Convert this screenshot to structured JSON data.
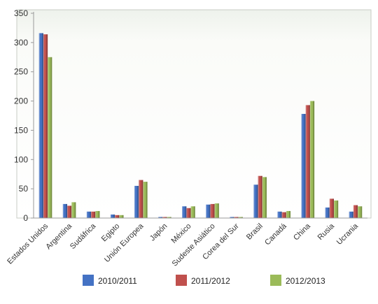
{
  "chart_data": {
    "type": "bar",
    "title": "",
    "xlabel": "",
    "ylabel": "",
    "ylim": [
      0,
      350
    ],
    "yticks": [
      0,
      50,
      100,
      150,
      200,
      250,
      300,
      350
    ],
    "grid": false,
    "legend_position": "bottom",
    "categories": [
      "Estados Unidos",
      "Argentina",
      "Sudáfrica",
      "Egipto",
      "Unión Europea",
      "Japón",
      "México",
      "Sudeste Asiático",
      "Corea del Sur",
      "Brasil",
      "Canadá",
      "China",
      "Rusia",
      "Ucrania"
    ],
    "series": [
      {
        "name": "2010/2011",
        "color": "#4472c4",
        "values": [
          316,
          24,
          11,
          6,
          55,
          0.5,
          20,
          23,
          0.5,
          57,
          11,
          178,
          18,
          11
        ]
      },
      {
        "name": "2011/2012",
        "color": "#c0504d",
        "values": [
          314,
          21,
          11,
          5,
          65,
          0.5,
          17,
          24,
          0.5,
          72,
          10,
          193,
          33,
          22
        ]
      },
      {
        "name": "2012/2013",
        "color": "#9bbb59",
        "values": [
          275,
          27,
          12,
          5,
          62,
          0.5,
          20,
          25,
          0.5,
          70,
          12,
          200,
          30,
          20
        ]
      }
    ]
  }
}
